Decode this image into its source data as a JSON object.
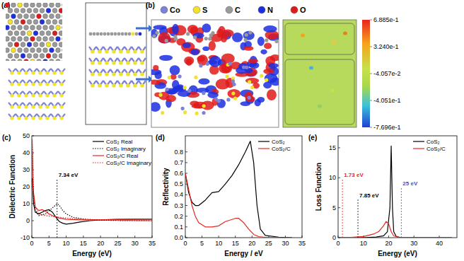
{
  "structure_panel": {
    "panel_label": "(a)"
  },
  "charge_panel": {
    "panel_label": "(b)",
    "elements": [
      {
        "symbol": "Co",
        "color": "#7d82d8"
      },
      {
        "symbol": "S",
        "color": "#f2e229"
      },
      {
        "symbol": "C",
        "color": "#9a9a9a"
      },
      {
        "symbol": "N",
        "color": "#1c2fe0"
      },
      {
        "symbol": "O",
        "color": "#e01a1a"
      }
    ],
    "colorbar": {
      "range": [
        -0.7696,
        0.6885
      ],
      "ticks": [
        {
          "value": 0.6885,
          "label": "6.885e-1"
        },
        {
          "value": 0.324,
          "label": "3.240e-1"
        },
        {
          "value": -0.04057,
          "label": "-4.057e-2"
        },
        {
          "value": -0.4051,
          "label": "-4.051e-1"
        },
        {
          "value": -0.7696,
          "label": "-7.696e-1"
        }
      ]
    }
  },
  "chart_data": [
    {
      "type": "line",
      "panel_label": "(c)",
      "x_label": "Energy (eV)",
      "y_label": "Dielectric Function",
      "xlim": [
        0,
        35
      ],
      "xticks": [
        0,
        5,
        10,
        15,
        20,
        25,
        30,
        35
      ],
      "ylim": [
        -10,
        50
      ],
      "yticks": [
        -10,
        0,
        10,
        20,
        30,
        40,
        50
      ],
      "grid": false,
      "legend": "upper right",
      "annotations": [
        {
          "text": "7.34 eV",
          "x": 7.34,
          "color": "#000000"
        }
      ],
      "series": [
        {
          "name": "CoS₂ Real",
          "color": "#000000",
          "line_style": "solid",
          "x": [
            0.1,
            0.5,
            1,
            2,
            3,
            4,
            5,
            6,
            7,
            8,
            9,
            10,
            12,
            14,
            17,
            20,
            25,
            30,
            35
          ],
          "values": [
            25,
            10,
            5,
            4,
            5,
            6,
            6.5,
            5,
            2,
            -0.5,
            -1.5,
            -2,
            -1.5,
            -0.8,
            0,
            0.5,
            0.8,
            0.9,
            0.9
          ]
        },
        {
          "name": "CoS₂ Imaginary",
          "color": "#000000",
          "line_style": "dotted",
          "x": [
            0.1,
            0.5,
            1,
            2,
            4,
            6,
            7.34,
            8,
            9,
            10,
            12,
            15,
            20,
            25,
            35
          ],
          "values": [
            45,
            15,
            6,
            3,
            4,
            7.5,
            10,
            9,
            6,
            4,
            2,
            1,
            0.3,
            0.1,
            0
          ]
        },
        {
          "name": "CoS₂/C Real",
          "color": "#e8251f",
          "line_style": "solid",
          "x": [
            0.1,
            0.3,
            1,
            2,
            3,
            4,
            5,
            6,
            8,
            10,
            15,
            20,
            35
          ],
          "values": [
            48,
            20,
            8,
            6,
            6.5,
            5.5,
            4,
            3,
            1.5,
            0.8,
            0.5,
            0.6,
            0.9
          ]
        },
        {
          "name": "CoS₂/C Imaginary",
          "color": "#e8251f",
          "line_style": "dotted",
          "x": [
            0.1,
            0.5,
            1,
            2,
            4,
            6,
            8,
            10,
            15,
            20,
            35
          ],
          "values": [
            40,
            15,
            8,
            4,
            3,
            2.5,
            2,
            1.5,
            0.7,
            0.3,
            0
          ]
        }
      ]
    },
    {
      "type": "line",
      "panel_label": "(d)",
      "x_label": "Energy / eV",
      "y_label": "Reflectivity",
      "xlim": [
        0,
        35
      ],
      "xticks": [
        0,
        5,
        10,
        15,
        20,
        25,
        30,
        35
      ],
      "ylim": [
        0,
        0.95
      ],
      "yticks": [
        {
          "value": 0,
          "label": "0.0"
        },
        0.1,
        0.2,
        0.3,
        0.4,
        0.5,
        0.6,
        0.7,
        0.8
      ],
      "grid": false,
      "legend": "upper right",
      "series": [
        {
          "name": "CoS₂",
          "color": "#000000",
          "line_style": "solid",
          "x": [
            0,
            1,
            2,
            3,
            4,
            6,
            8,
            10,
            12,
            14,
            16,
            18,
            19.5,
            20.5,
            21.5,
            22.5,
            24,
            28,
            32
          ],
          "values": [
            0.6,
            0.42,
            0.33,
            0.3,
            0.3,
            0.35,
            0.42,
            0.43,
            0.5,
            0.58,
            0.68,
            0.8,
            0.9,
            0.7,
            0.3,
            0.08,
            0.02,
            0.005,
            0
          ]
        },
        {
          "name": "CoS₂/C",
          "color": "#e8251f",
          "line_style": "solid",
          "x": [
            0,
            1,
            2,
            3,
            4,
            6,
            8,
            10,
            12,
            14,
            15,
            16,
            17.5,
            19,
            20.5,
            22,
            25,
            32
          ],
          "values": [
            0.6,
            0.45,
            0.3,
            0.2,
            0.14,
            0.1,
            0.1,
            0.11,
            0.15,
            0.17,
            0.18,
            0.18,
            0.14,
            0.08,
            0.03,
            0.01,
            0,
            0
          ]
        }
      ]
    },
    {
      "type": "line",
      "panel_label": "(e)",
      "x_label": "Energy (eV)",
      "y_label": "Loss Function",
      "xlim": [
        0,
        47
      ],
      "xticks": [
        0,
        10,
        20,
        30,
        40
      ],
      "ylim": [
        0,
        17
      ],
      "yticks": [
        0,
        5,
        10,
        15
      ],
      "grid": false,
      "legend": "upper right",
      "annotations": [
        {
          "text": "1.73 eV",
          "x": 1.73,
          "color": "#e8251f"
        },
        {
          "text": "7.85 eV",
          "x": 7.85,
          "color": "#000000"
        },
        {
          "text": "25 eV",
          "x": 25,
          "color": "#3a4fd0"
        }
      ],
      "series": [
        {
          "name": "CoS₂",
          "color": "#000000",
          "line_style": "solid",
          "x": [
            0,
            10,
            15,
            18,
            19.5,
            20.5,
            21,
            21.5,
            22,
            23,
            25,
            45
          ],
          "values": [
            0,
            0,
            0.1,
            0.3,
            1,
            5,
            15.3,
            5,
            1,
            0.2,
            0,
            0
          ]
        },
        {
          "name": "CoS₂/C",
          "color": "#e8251f",
          "line_style": "solid",
          "x": [
            0,
            5,
            10,
            14,
            16,
            18,
            19,
            20,
            21,
            22,
            24,
            28,
            45
          ],
          "values": [
            0,
            0.05,
            0.2,
            0.6,
            1,
            2,
            2.7,
            2.3,
            1,
            0.3,
            0.05,
            0,
            0
          ]
        }
      ]
    }
  ]
}
